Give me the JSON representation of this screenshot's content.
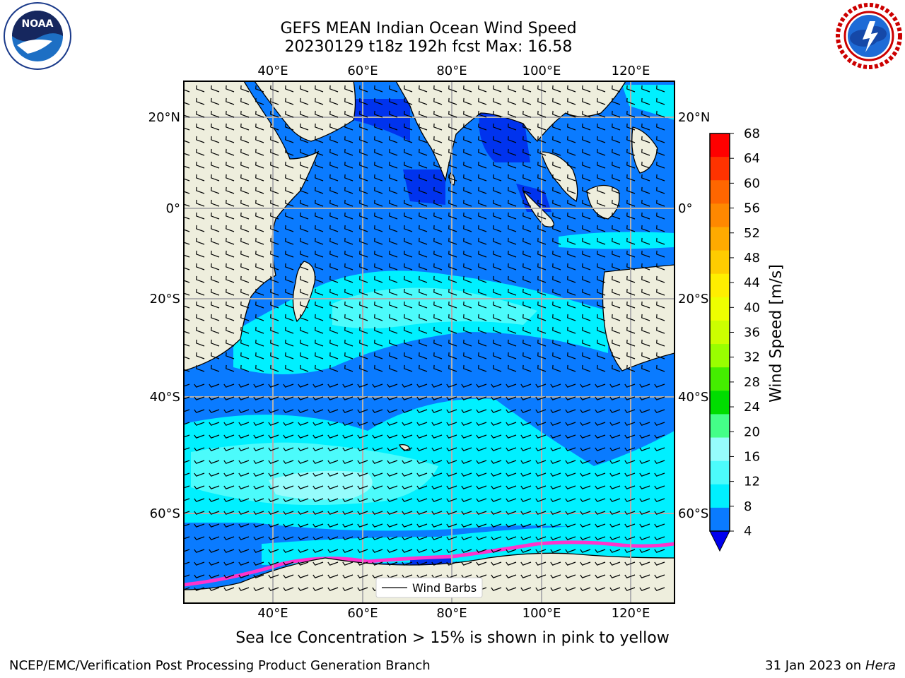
{
  "header": {
    "title_line1": "GEFS MEAN Indian Ocean Wind Speed",
    "title_line2": "20230129 t18z 192h fcst   Max: 16.58"
  },
  "logos": {
    "left": {
      "text": "NOAA",
      "icon": "noaa-logo-icon",
      "ring_text": "NATIONAL OCEANIC AND ATMOSPHERIC ADMINISTRATION · U.S. DEPARTMENT OF COMMERCE"
    },
    "right": {
      "icon": "nws-logo-icon",
      "ring_text": "NATIONAL WEATHER SERVICE"
    }
  },
  "map": {
    "lon_range": [
      20,
      130
    ],
    "lat_range": [
      -74,
      28
    ],
    "lon_ticks": [
      "40°E",
      "60°E",
      "80°E",
      "100°E",
      "120°E"
    ],
    "lat_ticks": [
      "20°N",
      "0°",
      "20°S",
      "40°S",
      "60°S"
    ],
    "legend": "Wind Barbs",
    "colors": {
      "land": "#eeeedd",
      "band_4_8": "#0a7bff",
      "band_8_12": "#00f0ff",
      "band_12_16": "#4cfbfb",
      "band_16_20": "#96fcfc",
      "dark_blue": "#0033ee",
      "sea_ice": "#ff33cc"
    }
  },
  "colorbar": {
    "title": "Wind Speed [m/s]",
    "ticks": [
      "68",
      "64",
      "60",
      "56",
      "52",
      "48",
      "44",
      "40",
      "36",
      "32",
      "28",
      "24",
      "20",
      "16",
      "12",
      "8",
      "4"
    ],
    "colors": [
      "#ff0000",
      "#ff3300",
      "#ff6600",
      "#ff8800",
      "#ffaa00",
      "#ffcc00",
      "#ffee00",
      "#eeff00",
      "#ccff00",
      "#99ff00",
      "#44ee00",
      "#00dd00",
      "#44ff88",
      "#96fcfc",
      "#4cfbfb",
      "#00f0ff",
      "#0a7bff"
    ],
    "under_color": "#0000ee"
  },
  "caption": "Sea Ice Concentration > 15% is shown in pink to yellow",
  "footer": {
    "left": "NCEP/EMC/Verification Post Processing Product Generation Branch",
    "right_date": "31 Jan 2023 on ",
    "right_host": "Hera"
  }
}
